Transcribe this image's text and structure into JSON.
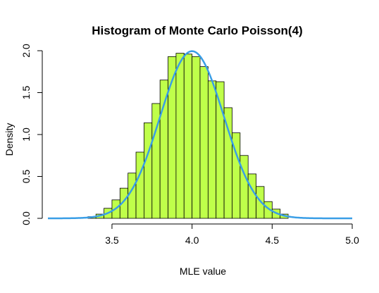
{
  "chart_data": {
    "type": "bar",
    "title": "Histogram of Monte Carlo Poisson(4)",
    "xlabel": "MLE value",
    "ylabel": "Density",
    "xlim": [
      3.1,
      5.0
    ],
    "ylim": [
      0,
      2.0
    ],
    "x_ticks": [
      "3.5",
      "4.0",
      "4.5",
      "5.0"
    ],
    "y_ticks": [
      "0.0",
      "0.5",
      "1.0",
      "1.5",
      "2.0"
    ],
    "bin_width": 0.05,
    "bins": [
      {
        "x0": 3.35,
        "x1": 3.4,
        "density": 0.02
      },
      {
        "x0": 3.4,
        "x1": 3.45,
        "density": 0.05
      },
      {
        "x0": 3.45,
        "x1": 3.5,
        "density": 0.12
      },
      {
        "x0": 3.5,
        "x1": 3.55,
        "density": 0.22
      },
      {
        "x0": 3.55,
        "x1": 3.6,
        "density": 0.36
      },
      {
        "x0": 3.6,
        "x1": 3.65,
        "density": 0.54
      },
      {
        "x0": 3.65,
        "x1": 3.7,
        "density": 0.79
      },
      {
        "x0": 3.7,
        "x1": 3.75,
        "density": 1.14
      },
      {
        "x0": 3.75,
        "x1": 3.8,
        "density": 1.37
      },
      {
        "x0": 3.8,
        "x1": 3.85,
        "density": 1.65
      },
      {
        "x0": 3.85,
        "x1": 3.9,
        "density": 1.93
      },
      {
        "x0": 3.9,
        "x1": 3.95,
        "density": 1.97
      },
      {
        "x0": 3.95,
        "x1": 4.0,
        "density": 1.96
      },
      {
        "x0": 4.0,
        "x1": 4.05,
        "density": 1.93
      },
      {
        "x0": 4.05,
        "x1": 4.1,
        "density": 1.81
      },
      {
        "x0": 4.1,
        "x1": 4.15,
        "density": 1.64
      },
      {
        "x0": 4.15,
        "x1": 4.2,
        "density": 1.63
      },
      {
        "x0": 4.2,
        "x1": 4.25,
        "density": 1.32
      },
      {
        "x0": 4.25,
        "x1": 4.3,
        "density": 1.02
      },
      {
        "x0": 4.3,
        "x1": 4.35,
        "density": 0.75
      },
      {
        "x0": 4.35,
        "x1": 4.4,
        "density": 0.53
      },
      {
        "x0": 4.4,
        "x1": 4.45,
        "density": 0.38
      },
      {
        "x0": 4.45,
        "x1": 4.5,
        "density": 0.2
      },
      {
        "x0": 4.5,
        "x1": 4.55,
        "density": 0.11
      },
      {
        "x0": 4.55,
        "x1": 4.6,
        "density": 0.05
      }
    ],
    "curve": {
      "mean": 4.0,
      "sd": 0.2,
      "color": "#3a9ee6"
    },
    "bar_color": "#bfff4a",
    "grid": false
  }
}
